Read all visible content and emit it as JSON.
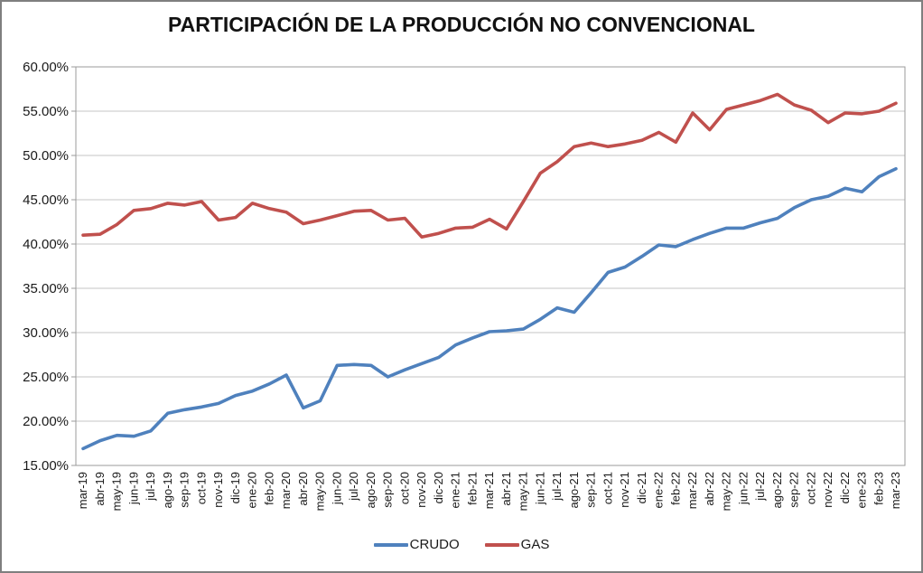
{
  "chart_data": {
    "type": "line",
    "title": "PARTICIPACIÓN DE LA PRODUCCIÓN NO CONVENCIONAL",
    "xlabel": "",
    "ylabel": "",
    "ylim": [
      15,
      60
    ],
    "ytick_step": 5,
    "ytick_labels": [
      "60.00%",
      "55.00%",
      "50.00%",
      "45.00%",
      "40.00%",
      "35.00%",
      "30.00%",
      "25.00%",
      "20.00%",
      "15.00%"
    ],
    "grid": true,
    "legend_position": "bottom",
    "categories": [
      "mar-19",
      "abr-19",
      "may-19",
      "jun-19",
      "jul-19",
      "ago-19",
      "sep-19",
      "oct-19",
      "nov-19",
      "dic-19",
      "ene-20",
      "feb-20",
      "mar-20",
      "abr-20",
      "may-20",
      "jun-20",
      "jul-20",
      "ago-20",
      "sep-20",
      "oct-20",
      "nov-20",
      "dic-20",
      "ene-21",
      "feb-21",
      "mar-21",
      "abr-21",
      "may-21",
      "jun-21",
      "jul-21",
      "ago-21",
      "sep-21",
      "oct-21",
      "nov-21",
      "dic-21",
      "ene-22",
      "feb-22",
      "mar-22",
      "abr-22",
      "may-22",
      "jun-22",
      "jul-22",
      "ago-22",
      "sep-22",
      "oct-22",
      "nov-22",
      "dic-22",
      "ene-23",
      "feb-23",
      "mar-23"
    ],
    "series": [
      {
        "name": "CRUDO",
        "color": "#4F81BD",
        "values": [
          16.9,
          17.8,
          18.4,
          18.3,
          18.9,
          20.9,
          21.3,
          21.6,
          22.0,
          22.9,
          23.4,
          24.2,
          25.2,
          21.5,
          22.3,
          26.3,
          26.4,
          26.3,
          25.0,
          25.8,
          26.5,
          27.2,
          28.6,
          29.4,
          30.1,
          30.2,
          30.4,
          31.5,
          32.8,
          32.3,
          34.5,
          36.8,
          37.4,
          38.6,
          39.9,
          39.7,
          40.5,
          41.2,
          41.8,
          41.8,
          42.4,
          42.9,
          44.1,
          45.0,
          45.4,
          46.3,
          45.9,
          47.6,
          48.5
        ]
      },
      {
        "name": "GAS",
        "color": "#C0504D",
        "values": [
          41.0,
          41.1,
          42.2,
          43.8,
          44.0,
          44.6,
          44.4,
          44.8,
          42.7,
          43.0,
          44.6,
          44.0,
          43.6,
          42.3,
          42.7,
          43.2,
          43.7,
          43.8,
          42.7,
          42.9,
          40.8,
          41.2,
          41.8,
          41.9,
          42.8,
          41.7,
          44.8,
          48.0,
          49.3,
          51.0,
          51.4,
          51.0,
          51.3,
          51.7,
          52.6,
          51.5,
          54.8,
          52.9,
          55.2,
          55.7,
          56.2,
          56.9,
          55.7,
          55.1,
          53.7,
          54.8,
          54.7,
          55.0,
          55.9
        ]
      }
    ]
  }
}
